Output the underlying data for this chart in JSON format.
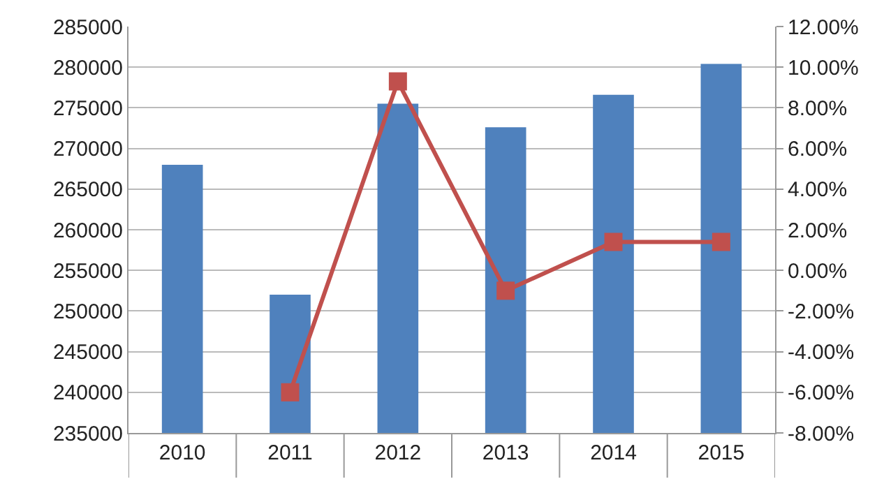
{
  "chart_data": {
    "type": "bar",
    "categories": [
      "2010",
      "2011",
      "2012",
      "2013",
      "2014",
      "2015"
    ],
    "series": [
      {
        "color": "#4f81bd",
        "values": [
          268000,
          252000,
          275500,
          272600,
          276600,
          280400
        ]
      },
      {
        "type": "line",
        "axis": "y2",
        "color": "#c0504d",
        "marker": "square",
        "values": [
          null,
          -6,
          9.3,
          -1.0,
          1.4,
          1.4
        ]
      }
    ],
    "ylim": [
      235000,
      285000
    ],
    "yticks": [
      235000,
      240000,
      245000,
      250000,
      255000,
      260000,
      265000,
      270000,
      275000,
      280000,
      285000
    ],
    "y2lim": [
      -8,
      12
    ],
    "y2ticks": [
      {
        "value": -8,
        "label": "-8.00%"
      },
      {
        "value": -6,
        "label": "-6.00%"
      },
      {
        "value": -4,
        "label": "-4.00%"
      },
      {
        "value": -2,
        "label": "-2.00%"
      },
      {
        "value": 0,
        "label": "0.00%"
      },
      {
        "value": 2,
        "label": "2.00%"
      },
      {
        "value": 4,
        "label": "4.00%"
      },
      {
        "value": 6,
        "label": "6.00%"
      },
      {
        "value": 8,
        "label": "8.00%"
      },
      {
        "value": 10,
        "label": "10.00%"
      },
      {
        "value": 12,
        "label": "12.00%"
      }
    ],
    "grid": "y"
  }
}
